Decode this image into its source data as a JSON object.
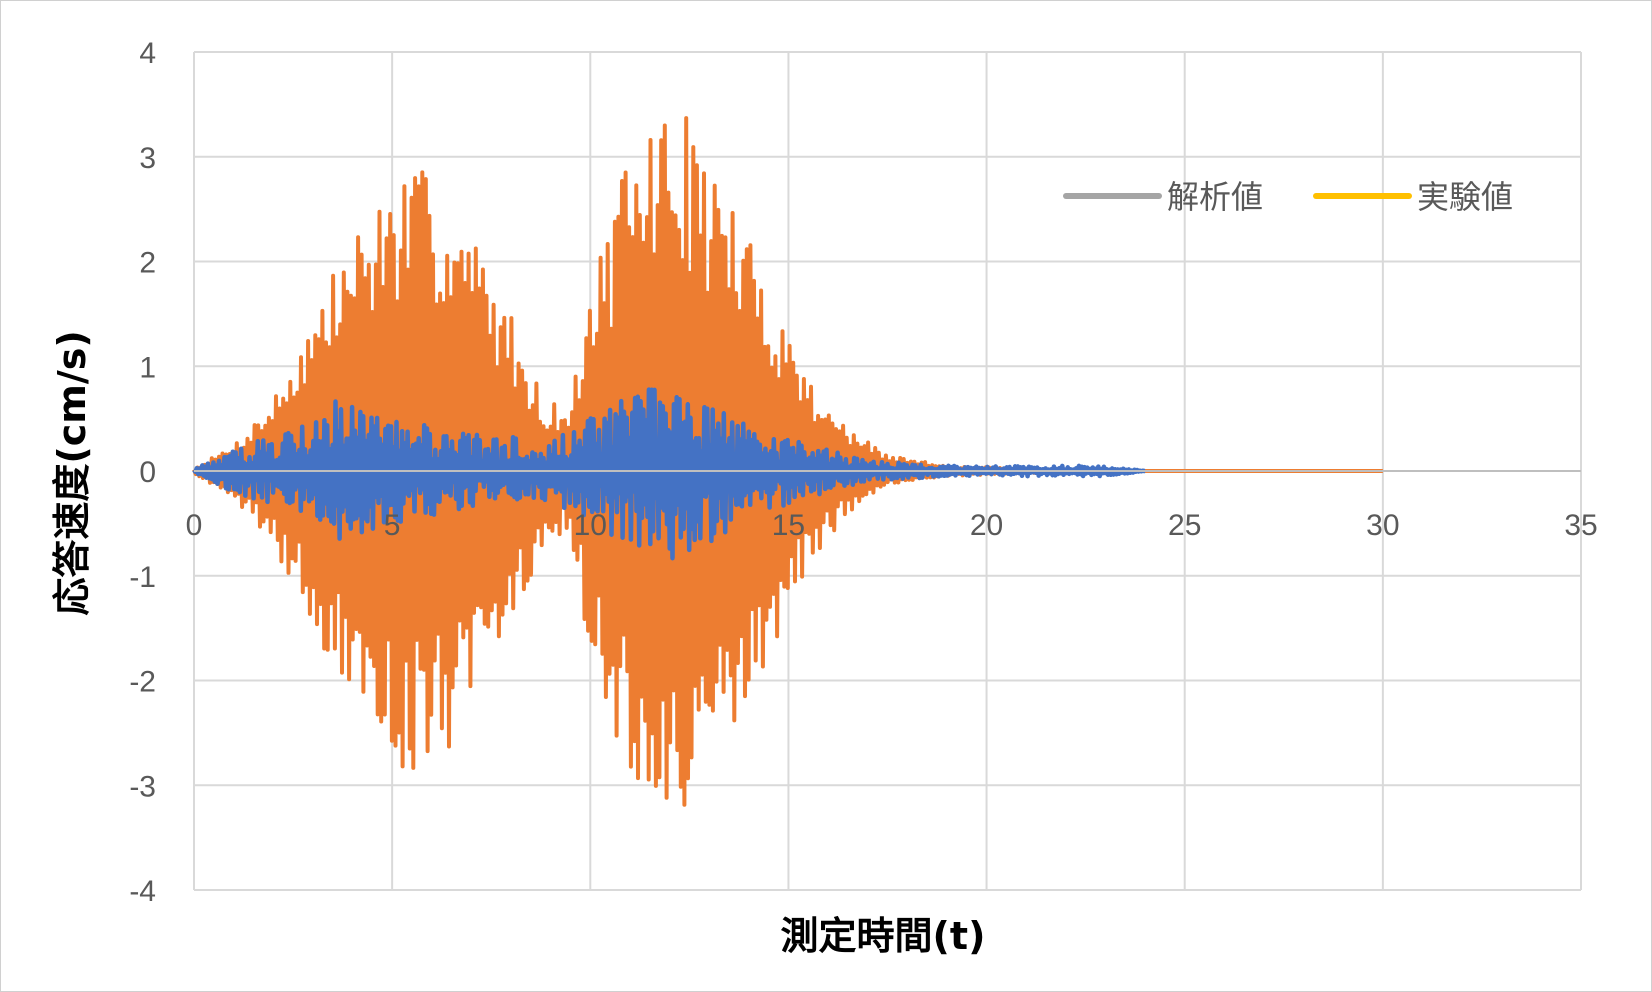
{
  "chart_data": {
    "type": "line",
    "xlabel": "測定時間(t)",
    "ylabel": "応答速度(cm/s)",
    "xlim": [
      0,
      35
    ],
    "ylim": [
      -4,
      4
    ],
    "x_ticks": [
      "0",
      "5",
      "10",
      "15",
      "20",
      "25",
      "30",
      "35"
    ],
    "y_ticks": [
      "4",
      "3",
      "2",
      "1",
      "0",
      "-1",
      "-2",
      "-3",
      "-4"
    ],
    "grid": true,
    "legend_position": "top-right",
    "legend": [
      {
        "label": "解析値",
        "color": "#A5A5A5"
      },
      {
        "label": "実験値",
        "color": "#FFC000"
      }
    ],
    "series": [
      {
        "color": "#ED7D31",
        "x_range": [
          0,
          30
        ],
        "envelope": [
          {
            "t": 0,
            "amp": 0.02
          },
          {
            "t": 1,
            "amp": 0.25
          },
          {
            "t": 2,
            "amp": 0.7
          },
          {
            "t": 3,
            "amp": 1.5
          },
          {
            "t": 4,
            "amp": 2.3
          },
          {
            "t": 5,
            "amp": 2.8
          },
          {
            "t": 6,
            "amp": 2.9
          },
          {
            "t": 7,
            "amp": 2.3
          },
          {
            "t": 8,
            "amp": 1.5
          },
          {
            "t": 8.8,
            "amp": 0.7
          },
          {
            "t": 9.5,
            "amp": 0.6
          },
          {
            "t": 10,
            "amp": 1.8
          },
          {
            "t": 10.8,
            "amp": 2.8
          },
          {
            "t": 11.5,
            "amp": 3.4
          },
          {
            "t": 12.2,
            "amp": 3.55
          },
          {
            "t": 13.2,
            "amp": 2.9
          },
          {
            "t": 14.5,
            "amp": 1.8
          },
          {
            "t": 15.5,
            "amp": 0.9
          },
          {
            "t": 16.5,
            "amp": 0.4
          },
          {
            "t": 17.5,
            "amp": 0.15
          },
          {
            "t": 19,
            "amp": 0.05
          },
          {
            "t": 21,
            "amp": 0.02
          },
          {
            "t": 24,
            "amp": 0.0
          },
          {
            "t": 30,
            "amp": 0.0
          }
        ]
      },
      {
        "color": "#4472C4",
        "x_range": [
          0,
          24
        ],
        "envelope": [
          {
            "t": 0,
            "amp": 0.02
          },
          {
            "t": 1,
            "amp": 0.2
          },
          {
            "t": 2,
            "amp": 0.35
          },
          {
            "t": 3.5,
            "amp": 0.7
          },
          {
            "t": 5,
            "amp": 0.5
          },
          {
            "t": 7,
            "amp": 0.35
          },
          {
            "t": 9,
            "amp": 0.3
          },
          {
            "t": 10.5,
            "amp": 0.6
          },
          {
            "t": 11.5,
            "amp": 0.9
          },
          {
            "t": 12.5,
            "amp": 0.8
          },
          {
            "t": 14,
            "amp": 0.45
          },
          {
            "t": 15.5,
            "amp": 0.25
          },
          {
            "t": 17,
            "amp": 0.1
          },
          {
            "t": 19,
            "amp": 0.05
          },
          {
            "t": 23,
            "amp": 0.05
          },
          {
            "t": 24,
            "amp": 0.0
          }
        ]
      }
    ]
  }
}
